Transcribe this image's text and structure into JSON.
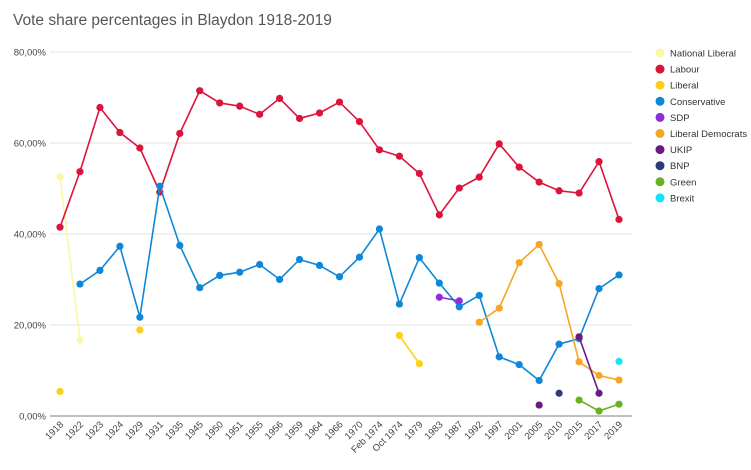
{
  "chart_data": {
    "type": "line",
    "title": "Vote share percentages in Blaydon 1918-2019",
    "xlabel": "",
    "ylabel": "",
    "ylim": [
      0,
      80
    ],
    "yticks": [
      "0,00%",
      "20,00%",
      "40,00%",
      "60,00%",
      "80,00%"
    ],
    "ytick_values": [
      0,
      20,
      40,
      60,
      80
    ],
    "grid": true,
    "legend_position": "right",
    "categories": [
      "1918",
      "1922",
      "1923",
      "1924",
      "1929",
      "1931",
      "1935",
      "1945",
      "1950",
      "1951",
      "1955",
      "1956",
      "1959",
      "1964",
      "1966",
      "1970",
      "Feb 1974",
      "Oct 1974",
      "1979",
      "1983",
      "1987",
      "1992",
      "1997",
      "2001",
      "2005",
      "2010",
      "2015",
      "2017",
      "2019"
    ],
    "series": [
      {
        "name": "National Liberal",
        "color": "#fbf7a4",
        "values": [
          52.6,
          16.7,
          null,
          null,
          null,
          null,
          null,
          null,
          null,
          null,
          null,
          null,
          null,
          null,
          null,
          null,
          null,
          null,
          null,
          null,
          null,
          null,
          null,
          null,
          null,
          null,
          null,
          null,
          null
        ]
      },
      {
        "name": "Labour",
        "color": "#dc143c",
        "values": [
          41.5,
          53.7,
          67.8,
          62.3,
          58.9,
          49.2,
          62.1,
          71.5,
          68.8,
          68.1,
          66.3,
          69.8,
          65.4,
          66.6,
          69.0,
          64.7,
          58.5,
          57.1,
          53.3,
          44.2,
          50.1,
          52.5,
          59.8,
          54.7,
          51.4,
          49.5,
          49.0,
          55.9,
          43.2
        ]
      },
      {
        "name": "Liberal",
        "color": "#fdd017",
        "values": [
          5.4,
          null,
          null,
          null,
          18.9,
          null,
          null,
          null,
          null,
          null,
          null,
          null,
          null,
          null,
          null,
          null,
          null,
          17.7,
          11.5,
          null,
          null,
          null,
          null,
          null,
          null,
          null,
          null,
          null,
          null
        ]
      },
      {
        "name": "Conservative",
        "color": "#0f87d8",
        "values": [
          null,
          29.0,
          32.0,
          37.3,
          21.7,
          50.5,
          37.5,
          28.2,
          30.9,
          31.6,
          33.3,
          30.0,
          34.4,
          33.1,
          30.6,
          34.9,
          41.1,
          24.6,
          34.8,
          29.2,
          24.0,
          26.5,
          13.0,
          11.3,
          7.8,
          15.8,
          17.0,
          28.0,
          31.0
        ]
      },
      {
        "name": "SDP",
        "color": "#8e2ddc",
        "values": [
          null,
          null,
          null,
          null,
          null,
          null,
          null,
          null,
          null,
          null,
          null,
          null,
          null,
          null,
          null,
          null,
          null,
          null,
          null,
          26.1,
          25.3,
          null,
          null,
          null,
          null,
          null,
          null,
          null,
          null
        ]
      },
      {
        "name": "Liberal Democrats",
        "color": "#f5a623",
        "values": [
          null,
          null,
          null,
          null,
          null,
          null,
          null,
          null,
          null,
          null,
          null,
          null,
          null,
          null,
          null,
          null,
          null,
          null,
          null,
          null,
          null,
          20.6,
          23.7,
          33.7,
          37.7,
          29.1,
          11.9,
          8.9,
          7.9
        ]
      },
      {
        "name": "UKIP",
        "color": "#6d1a7e",
        "values": [
          null,
          null,
          null,
          null,
          null,
          null,
          null,
          null,
          null,
          null,
          null,
          null,
          null,
          null,
          null,
          null,
          null,
          null,
          null,
          null,
          null,
          null,
          null,
          null,
          2.4,
          null,
          17.4,
          5.0,
          null
        ]
      },
      {
        "name": "BNP",
        "color": "#2e3b7a",
        "values": [
          null,
          null,
          null,
          null,
          null,
          null,
          null,
          null,
          null,
          null,
          null,
          null,
          null,
          null,
          null,
          null,
          null,
          null,
          null,
          null,
          null,
          null,
          null,
          null,
          null,
          5.0,
          null,
          null,
          null
        ]
      },
      {
        "name": "Green",
        "color": "#6ab023",
        "values": [
          null,
          null,
          null,
          null,
          null,
          null,
          null,
          null,
          null,
          null,
          null,
          null,
          null,
          null,
          null,
          null,
          null,
          null,
          null,
          null,
          null,
          null,
          null,
          null,
          null,
          null,
          3.5,
          1.1,
          2.6
        ]
      },
      {
        "name": "Brexit",
        "color": "#12e6f5",
        "values": [
          null,
          null,
          null,
          null,
          null,
          null,
          null,
          null,
          null,
          null,
          null,
          null,
          null,
          null,
          null,
          null,
          null,
          null,
          null,
          null,
          null,
          null,
          null,
          null,
          null,
          null,
          null,
          null,
          12.0
        ]
      }
    ]
  }
}
